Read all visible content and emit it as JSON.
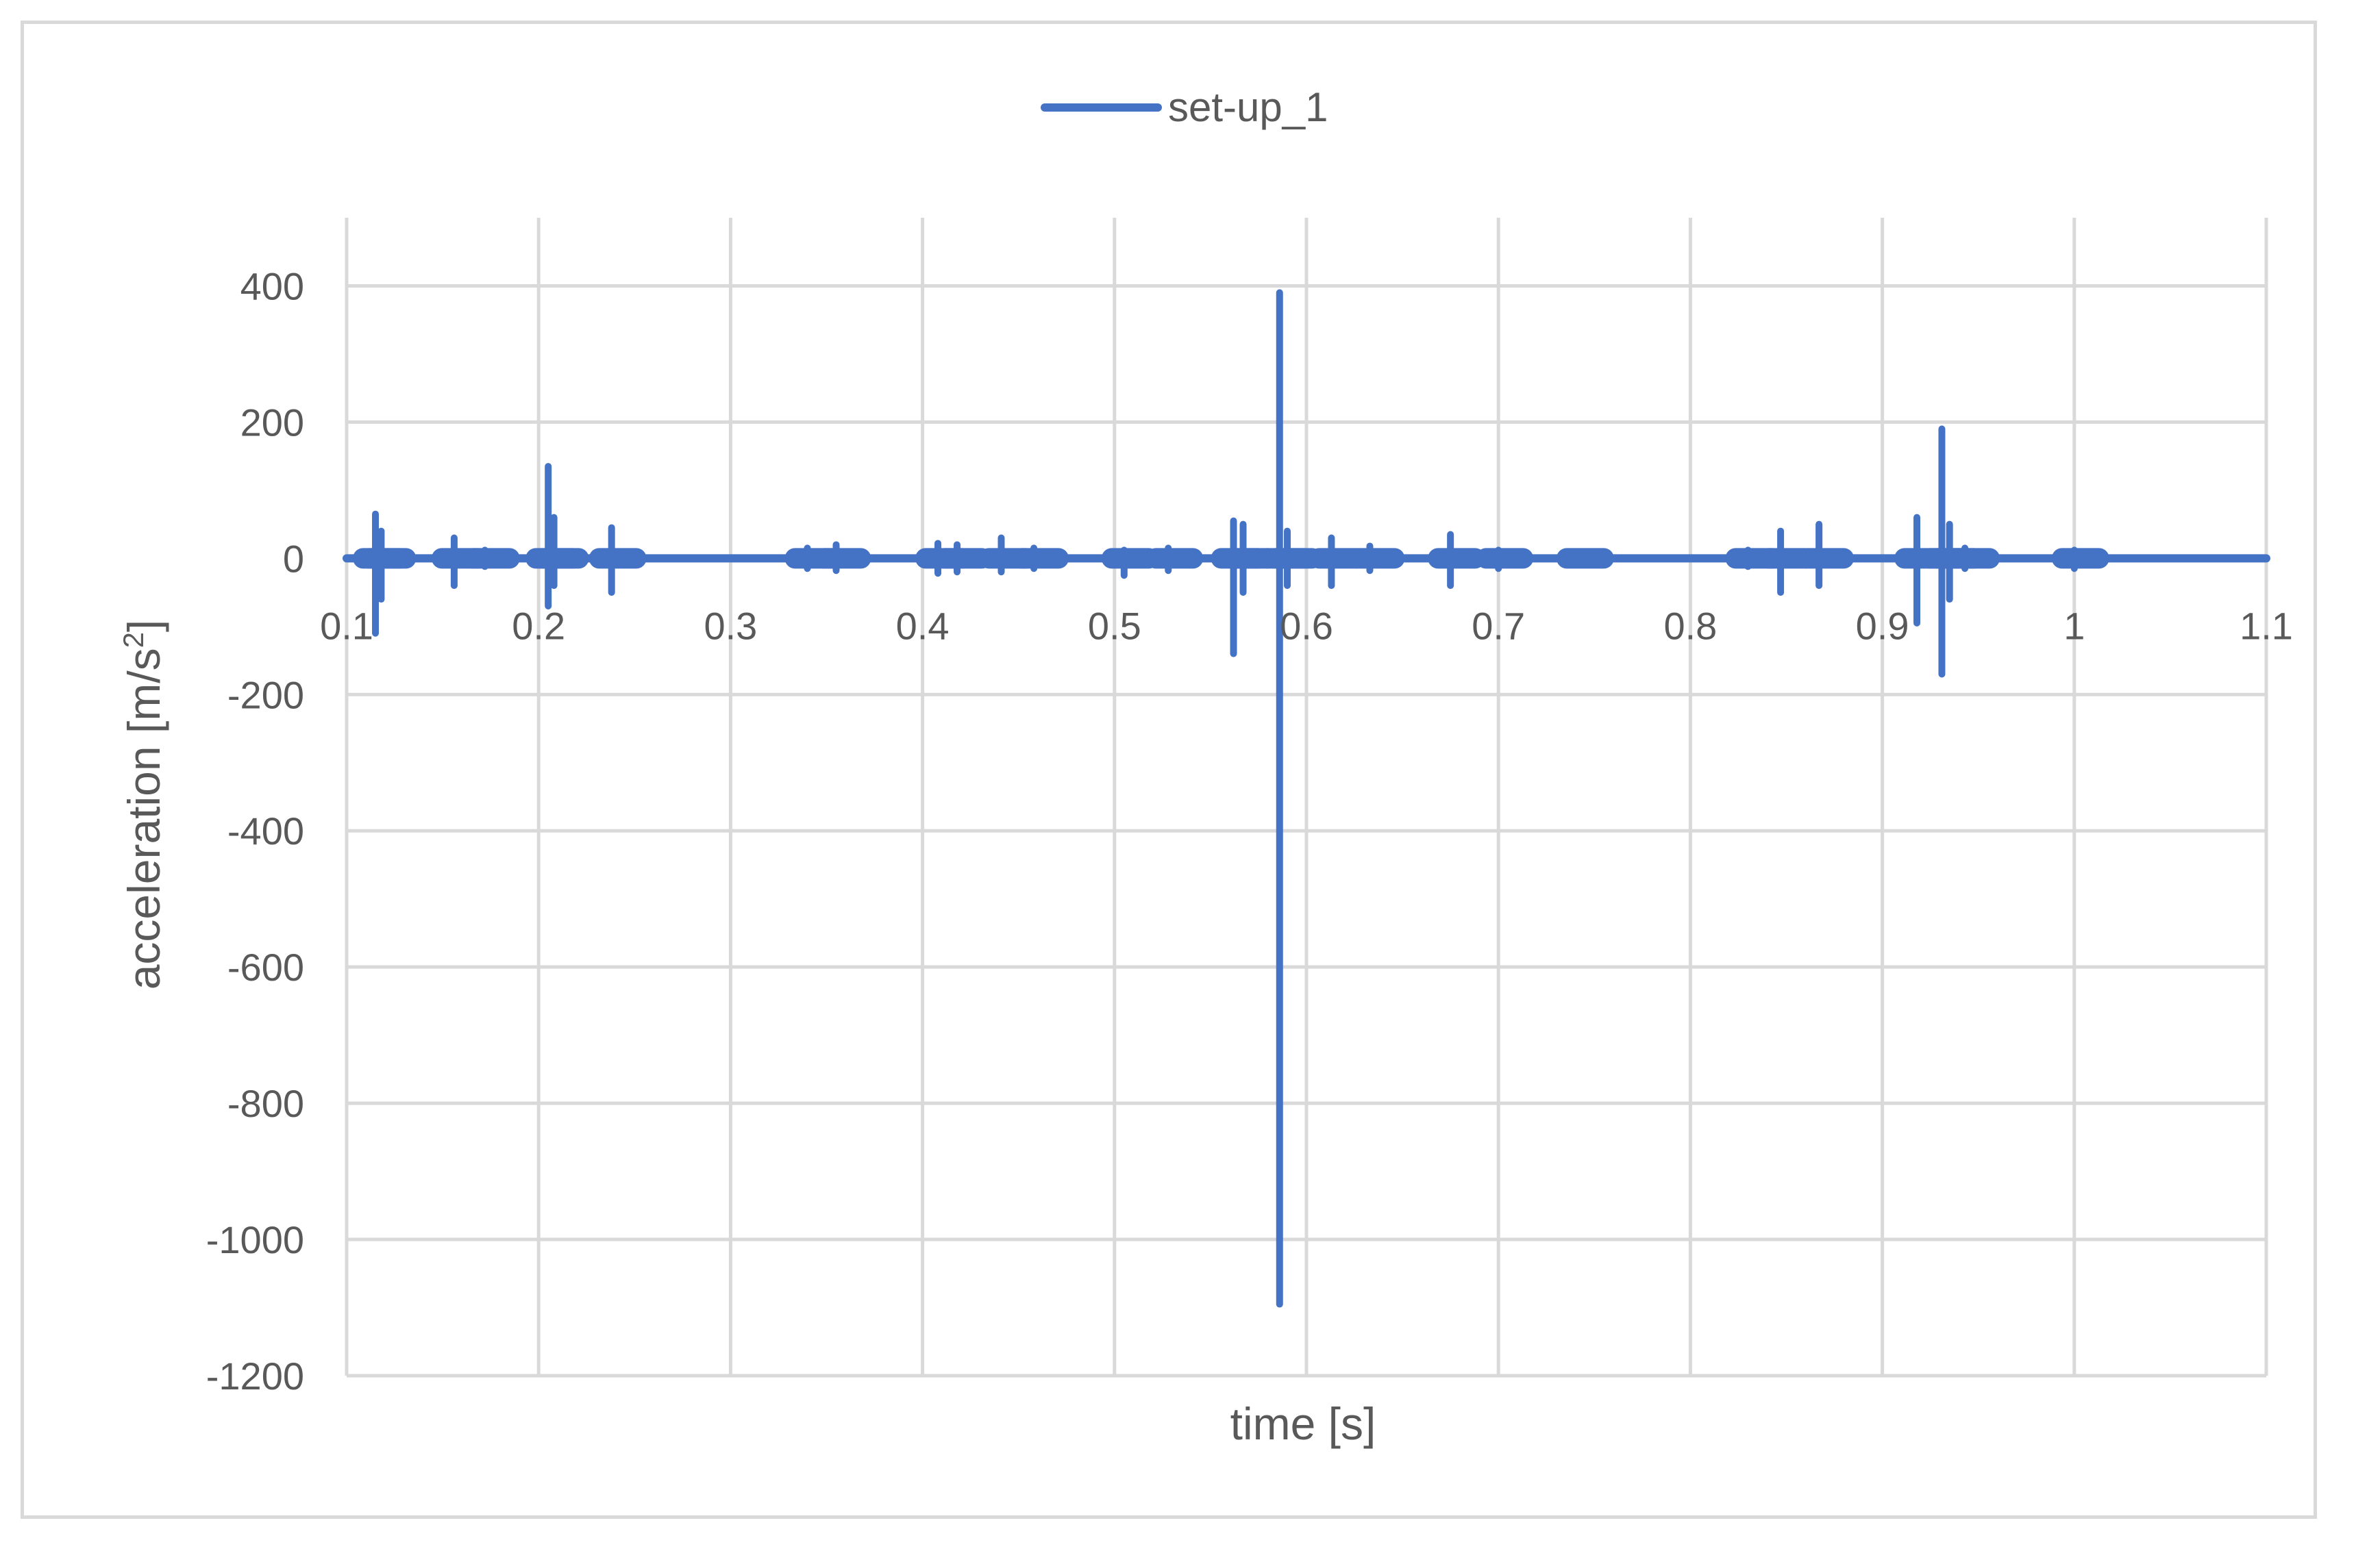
{
  "chart_data": {
    "type": "line",
    "title": "",
    "xlabel": "time [s]",
    "ylabel_parts": {
      "main": "acceleration [m/s",
      "sup": "2",
      "end": "]"
    },
    "xlim": [
      0.1,
      1.1
    ],
    "ylim": [
      -1200,
      500
    ],
    "x_ticks": [
      0.1,
      0.2,
      0.3,
      0.4,
      0.5,
      0.6,
      0.7,
      0.8,
      0.9,
      1.0,
      1.1
    ],
    "x_tick_labels": [
      "0.1",
      "0.2",
      "0.3",
      "0.4",
      "0.5",
      "0.6",
      "0.7",
      "0.8",
      "0.9",
      "1",
      "1.1"
    ],
    "y_ticks": [
      400,
      200,
      0,
      -200,
      -400,
      -600,
      -800,
      -1000,
      -1200
    ],
    "y_tick_labels": [
      "400",
      "200",
      "0",
      "-200",
      "-400",
      "-600",
      "-800",
      "-1000",
      "-1200"
    ],
    "grid": true,
    "legend_position": "top-center",
    "colors": {
      "series": "#4472c4",
      "grid": "#d9d9d9",
      "text": "#595959"
    },
    "series": [
      {
        "name": "set-up_1",
        "spikes": [
          {
            "x": 0.115,
            "max": 65,
            "min": -110
          },
          {
            "x": 0.118,
            "max": 40,
            "min": -60
          },
          {
            "x": 0.156,
            "max": 30,
            "min": -40
          },
          {
            "x": 0.172,
            "max": 12,
            "min": -12
          },
          {
            "x": 0.205,
            "max": 135,
            "min": -70
          },
          {
            "x": 0.208,
            "max": 60,
            "min": -40
          },
          {
            "x": 0.238,
            "max": 45,
            "min": -50
          },
          {
            "x": 0.34,
            "max": 15,
            "min": -15
          },
          {
            "x": 0.355,
            "max": 20,
            "min": -18
          },
          {
            "x": 0.408,
            "max": 22,
            "min": -22
          },
          {
            "x": 0.418,
            "max": 20,
            "min": -20
          },
          {
            "x": 0.441,
            "max": 30,
            "min": -20
          },
          {
            "x": 0.458,
            "max": 15,
            "min": -15
          },
          {
            "x": 0.505,
            "max": 12,
            "min": -25
          },
          {
            "x": 0.528,
            "max": 15,
            "min": -18
          },
          {
            "x": 0.562,
            "max": 55,
            "min": -140
          },
          {
            "x": 0.567,
            "max": 50,
            "min": -50
          },
          {
            "x": 0.586,
            "max": 390,
            "min": -1095
          },
          {
            "x": 0.59,
            "max": 40,
            "min": -40
          },
          {
            "x": 0.613,
            "max": 30,
            "min": -40
          },
          {
            "x": 0.633,
            "max": 18,
            "min": -18
          },
          {
            "x": 0.675,
            "max": 35,
            "min": -40
          },
          {
            "x": 0.7,
            "max": 12,
            "min": -15
          },
          {
            "x": 0.742,
            "max": 8,
            "min": -8
          },
          {
            "x": 0.83,
            "max": 12,
            "min": -12
          },
          {
            "x": 0.847,
            "max": 40,
            "min": -50
          },
          {
            "x": 0.867,
            "max": 50,
            "min": -40
          },
          {
            "x": 0.918,
            "max": 60,
            "min": -95
          },
          {
            "x": 0.931,
            "max": 190,
            "min": -170
          },
          {
            "x": 0.935,
            "max": 50,
            "min": -60
          },
          {
            "x": 0.943,
            "max": 15,
            "min": -15
          },
          {
            "x": 1.0,
            "max": 12,
            "min": -15
          }
        ]
      }
    ]
  }
}
